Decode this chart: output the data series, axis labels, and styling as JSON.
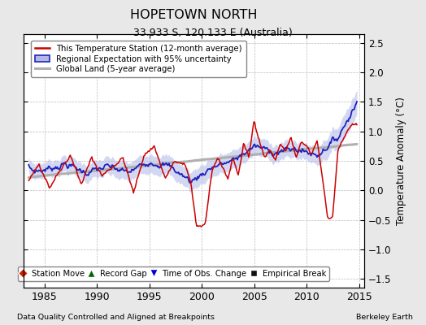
{
  "title": "HOPETOWN NORTH",
  "subtitle": "33.933 S, 120.133 E (Australia)",
  "ylabel": "Temperature Anomaly (°C)",
  "xlabel_left": "Data Quality Controlled and Aligned at Breakpoints",
  "xlabel_right": "Berkeley Earth",
  "xlim": [
    1983.0,
    2015.5
  ],
  "ylim": [
    -1.65,
    2.65
  ],
  "yticks": [
    -1.5,
    -1.0,
    -0.5,
    0.0,
    0.5,
    1.0,
    1.5,
    2.0,
    2.5
  ],
  "xticks": [
    1985,
    1990,
    1995,
    2000,
    2005,
    2010,
    2015
  ],
  "bg_color": "#e8e8e8",
  "plot_bg_color": "#ffffff",
  "red_color": "#cc0000",
  "blue_color": "#2222bb",
  "blue_fill_color": "#b0b8e8",
  "gray_color": "#b0b0b0",
  "grid_color": "#bbbbbb"
}
